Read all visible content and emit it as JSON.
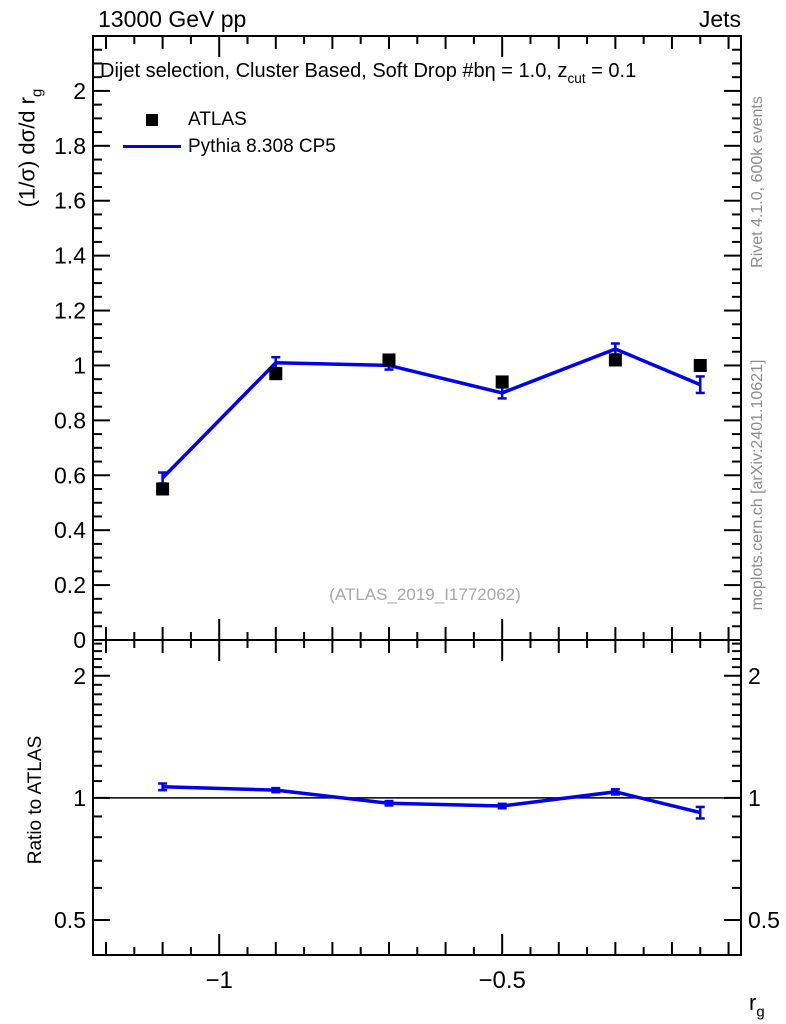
{
  "header": {
    "left": "13000 GeV pp",
    "right": "Jets"
  },
  "title": {
    "main": "Dijet selection, Cluster Based, Soft Drop #bη = 1.0, z",
    "sub": "cut",
    "tail": " = 0.1"
  },
  "legend": {
    "items": [
      {
        "label": "ATLAS",
        "marker": "black-square"
      },
      {
        "label": "Pythia 8.308 CP5",
        "marker": "blue-line"
      }
    ]
  },
  "watermark": "(ATLAS_2019_I1772062)",
  "side_notes": {
    "top": "Rivet 4.1.0,  600k events",
    "bottom": "mcplots.cern.ch [arXiv:2401.10621]"
  },
  "axis_labels": {
    "y_top_main": "(1/σ) dσ/d r",
    "y_top_sub": "g",
    "y_bottom": "Ratio to ATLAS",
    "x_main": "r",
    "x_sub": "g"
  },
  "colors": {
    "mc_line": "#0000ee",
    "data_marker": "#000000",
    "frame": "#000000",
    "gray_text": "#8c8c8c"
  },
  "chart_data": {
    "type": "line",
    "title": "Dijet selection, Cluster Based, Soft Drop #bη = 1.0, z_cut = 0.1",
    "xlabel": "r_g",
    "ylabel": "(1/σ) dσ/d r_g",
    "ratio_ylabel": "Ratio to ATLAS",
    "xlim": [
      -1.223,
      -0.078
    ],
    "xticks_labeled": [
      -1,
      -0.5
    ],
    "xtick_minor_step": 0.05,
    "xtick_medium_step": 0.1,
    "x": [
      -1.1,
      -0.9,
      -0.7,
      -0.5,
      -0.3,
      -0.15
    ],
    "series": [
      {
        "name": "ATLAS",
        "type": "scatter",
        "marker": "square",
        "color": "#000000",
        "values": [
          0.55,
          0.97,
          1.02,
          0.94,
          1.02,
          1.0
        ]
      },
      {
        "name": "Pythia 8.308 CP5",
        "type": "line",
        "color": "#0000ee",
        "values": [
          0.59,
          1.01,
          1.0,
          0.9,
          1.06,
          0.93
        ],
        "errors": [
          0.02,
          0.02,
          0.015,
          0.02,
          0.02,
          0.03
        ]
      }
    ],
    "main_panel": {
      "ylim": [
        0,
        2.2
      ],
      "ytick_major_step": 0.2,
      "ytick_minor_step": 0.05,
      "yticks_labeled": [
        0,
        0.2,
        0.4,
        0.6,
        0.8,
        1,
        1.2,
        1.4,
        1.6,
        1.8,
        2
      ]
    },
    "ratio_panel": {
      "yscale": "log",
      "ylim": [
        0.41,
        2.45
      ],
      "yticks_labeled": [
        0.5,
        1,
        2
      ],
      "reference_line": 1,
      "values": [
        1.065,
        1.045,
        0.97,
        0.955,
        1.035,
        0.92
      ],
      "errors": [
        0.02,
        0.012,
        0.012,
        0.012,
        0.015,
        0.03
      ]
    },
    "legend_position": "top-left",
    "grid": false
  }
}
